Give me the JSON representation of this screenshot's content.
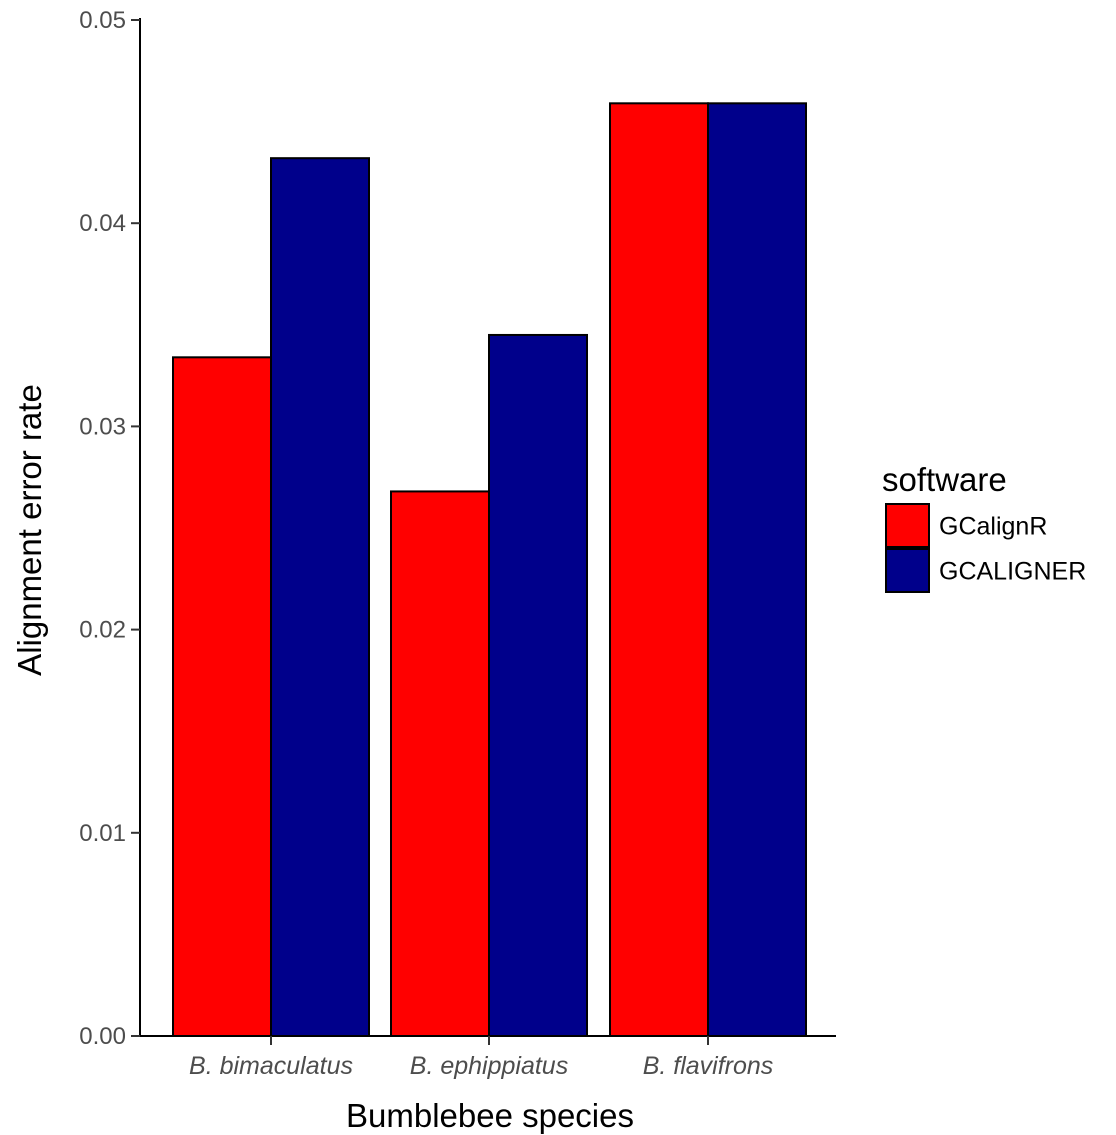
{
  "chart_data": {
    "type": "bar",
    "categories": [
      "B. bimaculatus",
      "B. ephippiatus",
      "B. flavifrons"
    ],
    "series": [
      {
        "name": "GCalignR",
        "color": "#ff0000",
        "values": [
          0.0334,
          0.0268,
          0.0459
        ]
      },
      {
        "name": "GCALIGNER",
        "color": "#00008b",
        "values": [
          0.0432,
          0.0345,
          0.0459
        ]
      }
    ],
    "xlabel": "Bumblebee species",
    "ylabel": "Alignment error rate",
    "ylim": [
      0,
      0.05
    ],
    "yticks": [
      "0.00",
      "0.01",
      "0.02",
      "0.03",
      "0.04",
      "0.05"
    ],
    "legend": {
      "title": "software",
      "placement": "right"
    },
    "grid": false
  }
}
